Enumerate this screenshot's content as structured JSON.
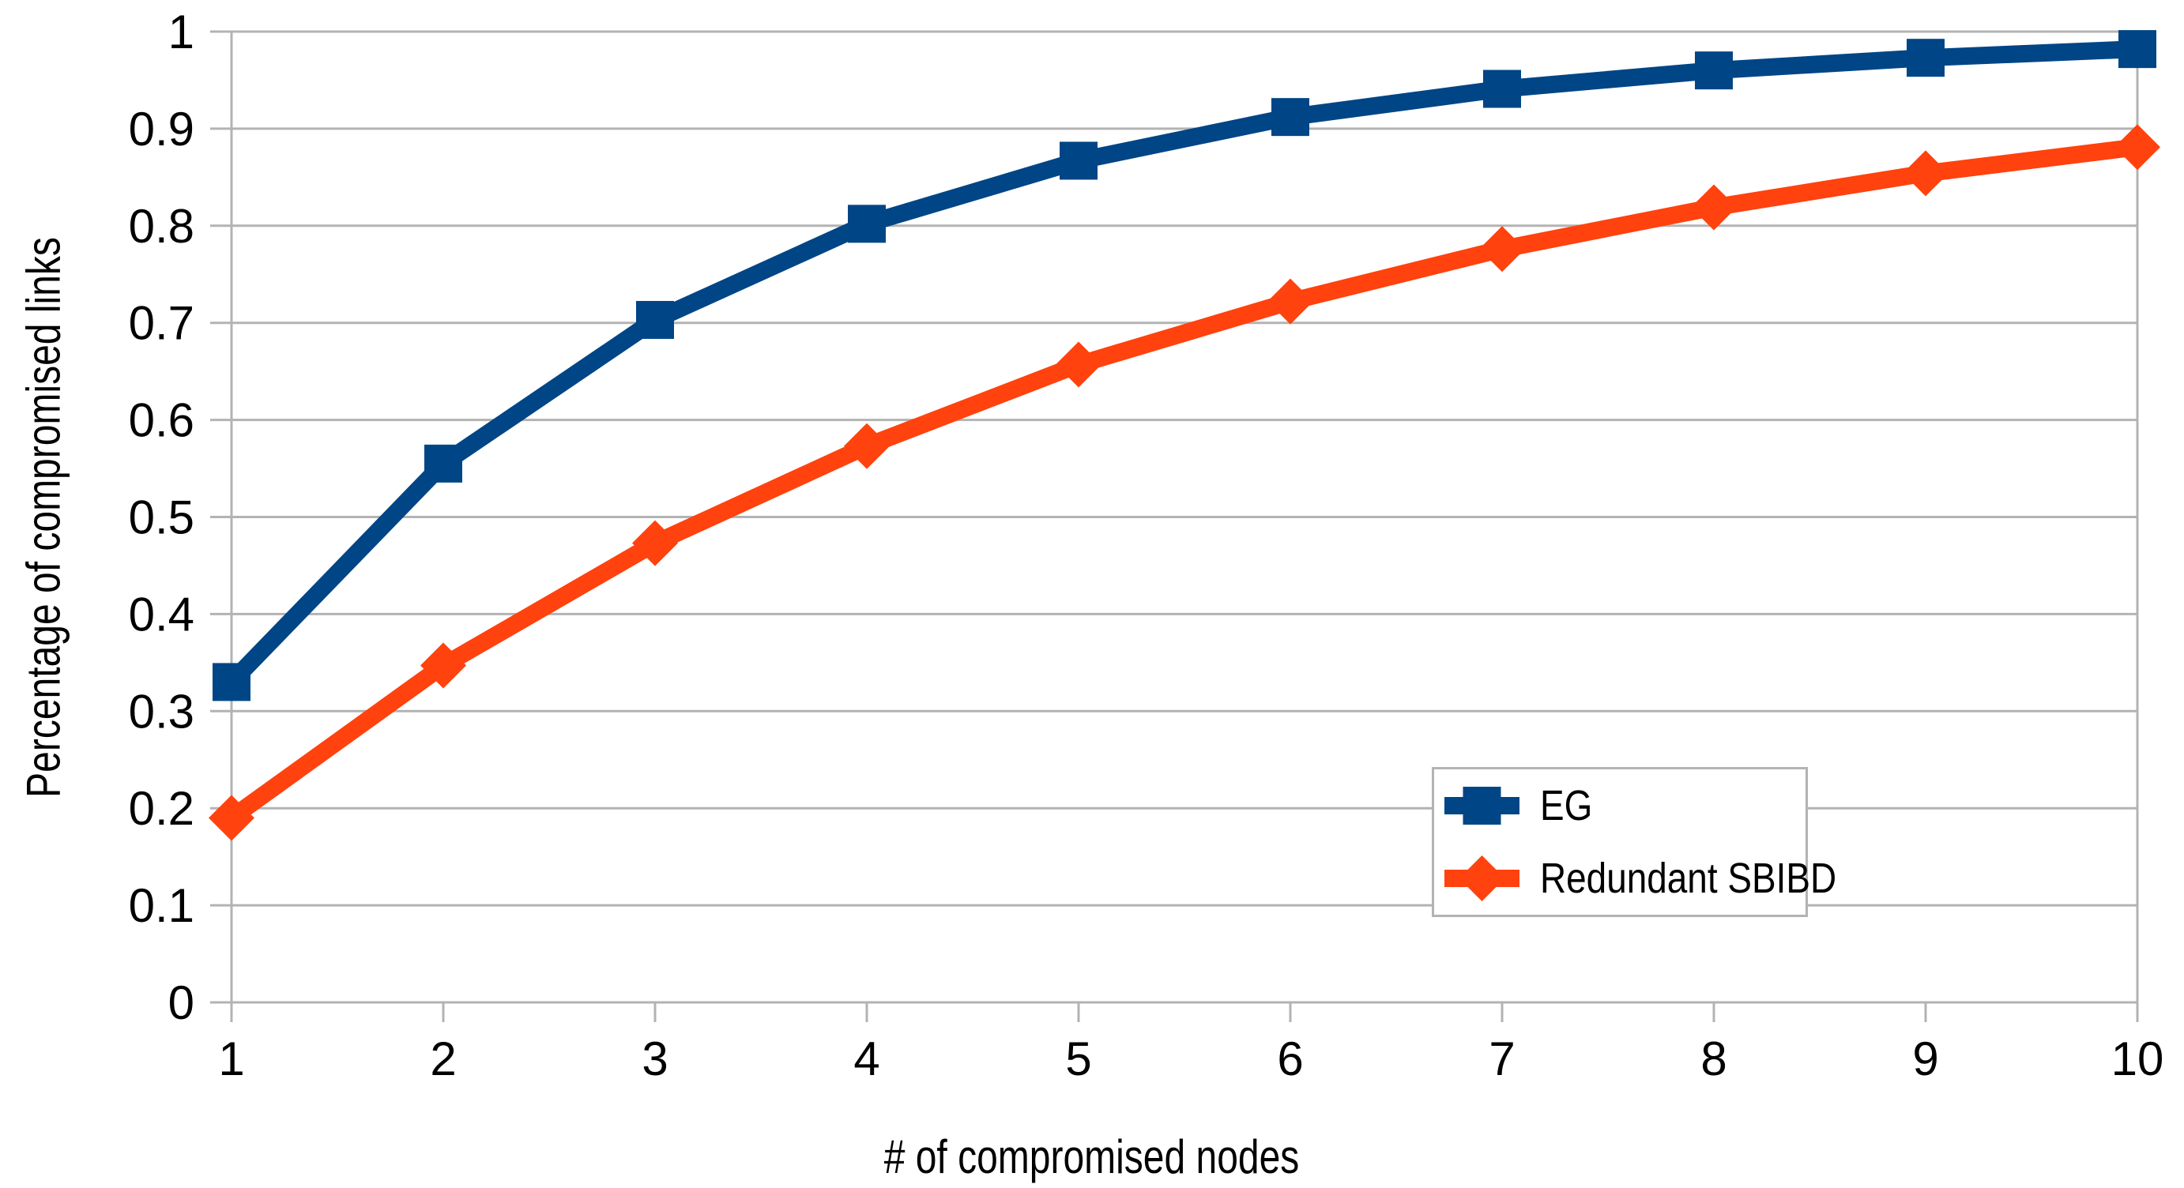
{
  "chart_data": {
    "type": "line",
    "xlabel": "# of compromised nodes",
    "ylabel": "Percentage of compromised links",
    "x": [
      1,
      2,
      3,
      4,
      5,
      6,
      7,
      8,
      9,
      10
    ],
    "series": [
      {
        "name": "EG",
        "marker": "square",
        "color": "#004586",
        "values": [
          0.33,
          0.555,
          0.703,
          0.802,
          0.867,
          0.912,
          0.941,
          0.96,
          0.973,
          0.982
        ]
      },
      {
        "name": "Redundant SBIBD",
        "marker": "diamond",
        "color": "#ff420e",
        "values": [
          0.19,
          0.347,
          0.473,
          0.573,
          0.657,
          0.722,
          0.776,
          0.819,
          0.854,
          0.881
        ]
      }
    ],
    "xlim": [
      1,
      10
    ],
    "ylim": [
      0,
      1
    ],
    "y_ticks": [
      0,
      0.1,
      0.2,
      0.3,
      0.4,
      0.5,
      0.6,
      0.7,
      0.8,
      0.9,
      1
    ],
    "y_tick_labels": [
      "0",
      "0.1",
      "0.2",
      "0.3",
      "0.4",
      "0.5",
      "0.6",
      "0.7",
      "0.8",
      "0.9",
      "1"
    ],
    "x_tick_labels": [
      "1",
      "2",
      "3",
      "4",
      "5",
      "6",
      "7",
      "8",
      "9",
      "10"
    ],
    "grid": "horizontal",
    "legend_position": "inside-bottom-right"
  },
  "colors": {
    "grid": "#b3b3b3",
    "text": "#000000",
    "background": "#ffffff",
    "series1": "#004586",
    "series2": "#ff420e"
  }
}
